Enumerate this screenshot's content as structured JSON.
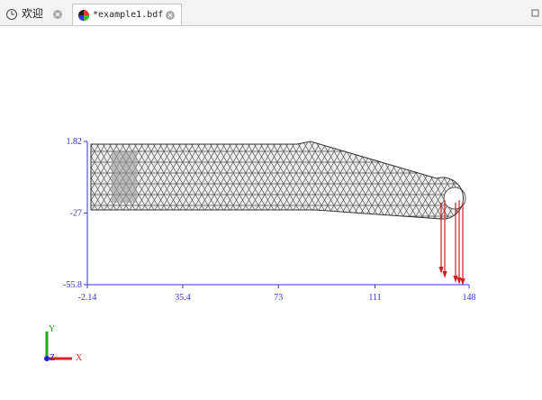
{
  "tabs": [
    "欢迎",
    "*example1.bdf"
  ],
  "view": {
    "xticks": [
      -2.14,
      35.4,
      73,
      111,
      148
    ],
    "yticks": [
      1.82,
      -27,
      -55.8
    ],
    "triad": {
      "y": "Y",
      "z": "Z",
      "x": "X"
    }
  }
}
